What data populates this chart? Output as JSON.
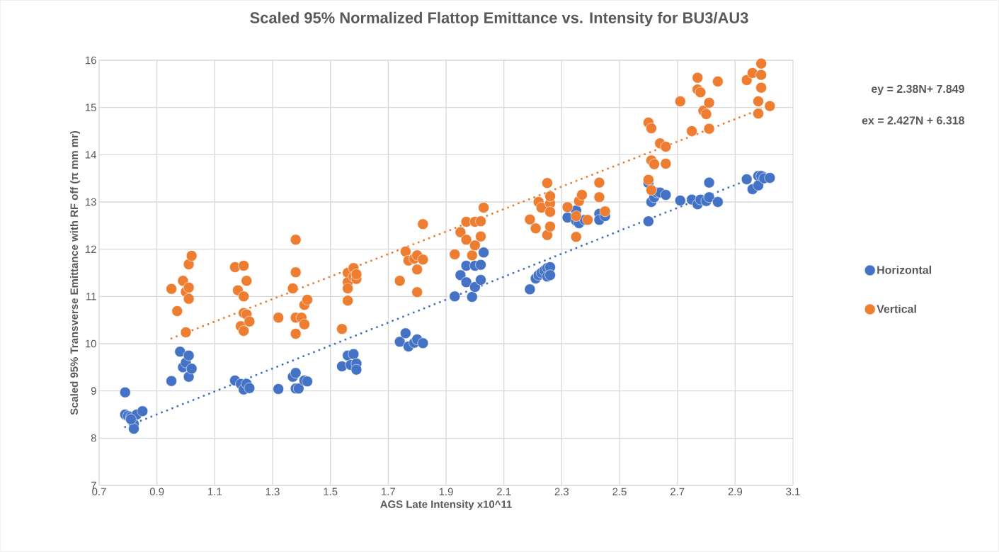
{
  "chart_data": {
    "type": "scatter",
    "title": "Scaled 95% Normalized Flattop Emittance vs. Intensity for BU3/AU3",
    "xlabel": "AGS Late Intensity x10^11",
    "ylabel": "Scaled 95% Transverse Emittance with RF off (π mm mr)",
    "xlim": [
      0.7,
      3.1
    ],
    "xticks": [
      0.7,
      0.9,
      1.1,
      1.3,
      1.5,
      1.7,
      1.9,
      2.1,
      2.3,
      2.5,
      2.7,
      2.9,
      3.1
    ],
    "ylim": [
      7,
      16
    ],
    "yticks": [
      7,
      8,
      9,
      10,
      11,
      12,
      13,
      14,
      15,
      16
    ],
    "grid": true,
    "legend": "right",
    "marker": "circle",
    "annotations": [
      "ey = 2.38N+ 7.849",
      "ex = 2.427N + 6.318"
    ],
    "series": [
      {
        "name": "Horizontal",
        "color": "#4472c4",
        "x": [
          0.79,
          0.79,
          0.8,
          0.81,
          0.82,
          0.82,
          0.83,
          0.85,
          0.81,
          0.95,
          0.98,
          0.99,
          1.0,
          1.01,
          1.01,
          1.02,
          1.17,
          1.19,
          1.2,
          1.21,
          1.22,
          1.32,
          1.37,
          1.38,
          1.38,
          1.39,
          1.41,
          1.42,
          1.54,
          1.56,
          1.57,
          1.58,
          1.59,
          1.59,
          1.74,
          1.76,
          1.77,
          1.79,
          1.8,
          1.82,
          1.93,
          1.95,
          1.97,
          1.97,
          1.99,
          2.0,
          2.0,
          2.02,
          2.02,
          2.03,
          2.19,
          2.21,
          2.22,
          2.23,
          2.24,
          2.25,
          2.25,
          2.26,
          2.26,
          2.32,
          2.35,
          2.35,
          2.36,
          2.38,
          2.43,
          2.43,
          2.45,
          2.6,
          2.6,
          2.61,
          2.62,
          2.63,
          2.64,
          2.66,
          2.71,
          2.75,
          2.77,
          2.78,
          2.8,
          2.81,
          2.81,
          2.84,
          2.94,
          2.96,
          2.98,
          2.98,
          2.99,
          3.0,
          3.02
        ],
        "values": [
          8.97,
          8.5,
          8.47,
          8.45,
          8.3,
          8.2,
          8.5,
          8.57,
          8.4,
          9.21,
          9.83,
          9.5,
          9.6,
          9.75,
          9.3,
          9.47,
          9.22,
          9.15,
          9.03,
          9.15,
          9.06,
          9.04,
          9.3,
          9.38,
          9.05,
          9.05,
          9.22,
          9.2,
          9.52,
          9.75,
          9.55,
          9.78,
          9.58,
          9.45,
          10.04,
          10.22,
          9.94,
          10.02,
          10.09,
          10.01,
          11.0,
          11.45,
          11.65,
          11.3,
          10.99,
          11.65,
          11.2,
          11.67,
          11.35,
          11.93,
          11.15,
          11.38,
          11.45,
          11.5,
          11.55,
          11.6,
          11.42,
          11.62,
          11.45,
          12.67,
          12.82,
          12.6,
          12.55,
          12.62,
          12.75,
          12.62,
          12.7,
          12.59,
          13.4,
          13.0,
          13.1,
          13.2,
          13.2,
          13.15,
          13.03,
          13.05,
          12.95,
          13.05,
          13.02,
          13.1,
          13.41,
          13.0,
          13.48,
          13.27,
          13.55,
          13.35,
          13.55,
          13.5,
          13.51
        ]
      },
      {
        "name": "Vertical",
        "color": "#ed7d31",
        "x": [
          0.95,
          0.97,
          0.99,
          1.0,
          1.0,
          1.01,
          1.01,
          1.01,
          1.02,
          1.17,
          1.18,
          1.19,
          1.2,
          1.2,
          1.2,
          1.2,
          1.21,
          1.21,
          1.22,
          1.32,
          1.37,
          1.38,
          1.38,
          1.38,
          1.38,
          1.4,
          1.41,
          1.41,
          1.42,
          1.54,
          1.56,
          1.56,
          1.56,
          1.56,
          1.58,
          1.58,
          1.59,
          1.59,
          1.74,
          1.76,
          1.77,
          1.79,
          1.8,
          1.8,
          1.8,
          1.82,
          1.82,
          1.93,
          1.95,
          1.97,
          1.97,
          1.99,
          2.0,
          2.0,
          2.02,
          2.02,
          2.03,
          2.19,
          2.21,
          2.22,
          2.23,
          2.25,
          2.25,
          2.26,
          2.26,
          2.26,
          2.26,
          2.32,
          2.35,
          2.35,
          2.36,
          2.37,
          2.39,
          2.43,
          2.43,
          2.45,
          2.6,
          2.6,
          2.61,
          2.61,
          2.61,
          2.62,
          2.64,
          2.66,
          2.66,
          2.71,
          2.75,
          2.77,
          2.77,
          2.78,
          2.79,
          2.8,
          2.81,
          2.81,
          2.84,
          2.94,
          2.96,
          2.98,
          2.98,
          2.99,
          2.99,
          2.99,
          3.02
        ],
        "values": [
          11.16,
          10.69,
          11.33,
          10.24,
          11.1,
          11.19,
          10.95,
          11.68,
          11.86,
          11.62,
          11.13,
          10.37,
          11.65,
          11.0,
          10.65,
          10.27,
          11.33,
          10.62,
          10.47,
          10.55,
          11.17,
          12.2,
          11.51,
          10.55,
          10.21,
          10.55,
          10.82,
          10.41,
          10.93,
          10.31,
          11.5,
          11.3,
          11.17,
          10.91,
          11.6,
          11.42,
          11.37,
          11.47,
          11.33,
          11.95,
          11.76,
          11.8,
          11.57,
          11.09,
          11.87,
          11.78,
          12.53,
          11.89,
          12.36,
          12.58,
          12.2,
          11.87,
          12.58,
          12.08,
          12.59,
          12.27,
          12.88,
          12.63,
          12.44,
          13.0,
          12.88,
          13.4,
          12.3,
          12.97,
          12.79,
          12.48,
          13.12,
          12.89,
          12.26,
          12.7,
          13.02,
          13.15,
          12.62,
          13.41,
          13.1,
          12.8,
          14.68,
          13.47,
          14.56,
          13.25,
          13.88,
          13.8,
          14.24,
          14.17,
          13.81,
          15.13,
          14.5,
          15.63,
          15.38,
          15.32,
          14.93,
          14.86,
          15.1,
          14.55,
          15.55,
          15.58,
          15.73,
          15.13,
          14.87,
          15.93,
          15.69,
          15.42,
          15.03
        ]
      },
      {
        "type": "line",
        "color": "#4472c4",
        "marker": "none",
        "line_style": "dotted",
        "x": [
          0.79,
          3.02
        ],
        "values": [
          8.235,
          13.65
        ]
      },
      {
        "type": "line",
        "color": "#ed7d31",
        "marker": "none",
        "line_style": "dotted",
        "x": [
          0.95,
          3.0
        ],
        "values": [
          10.11,
          14.99
        ]
      }
    ]
  }
}
